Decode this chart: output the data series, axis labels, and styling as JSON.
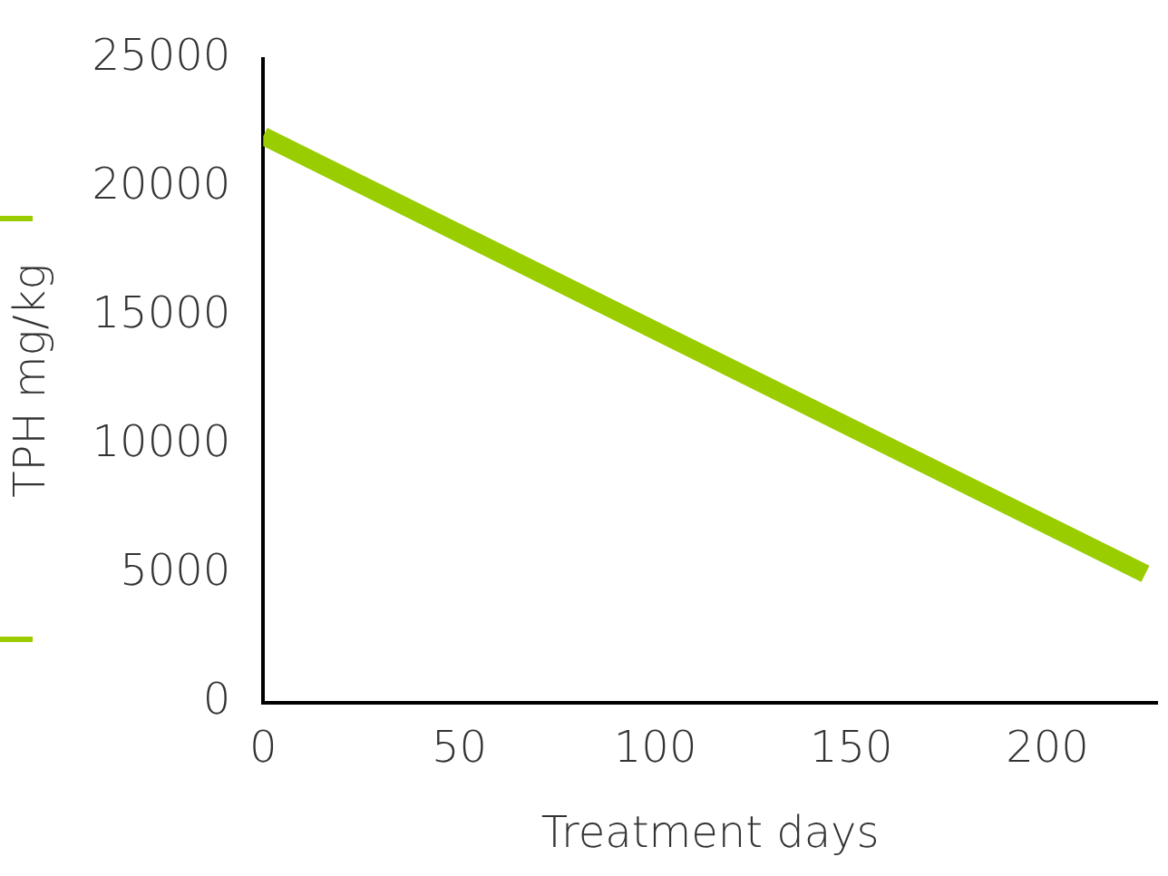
{
  "chart_data": {
    "type": "line",
    "xlabel": "Treatment days",
    "ylabel": "TPH mg/kg",
    "x": [
      0,
      225
    ],
    "series": [
      {
        "color": "#9acd00",
        "values": [
          22000,
          5000
        ]
      }
    ],
    "xlim": [
      0,
      228
    ],
    "xticks": [
      0,
      50,
      100,
      150,
      200
    ],
    "ylim": [
      0,
      25000
    ],
    "yticks": [
      0,
      5000,
      10000,
      15000,
      20000,
      25000
    ],
    "grid": false,
    "legend": false,
    "marker": "none",
    "line_style": "solid"
  }
}
